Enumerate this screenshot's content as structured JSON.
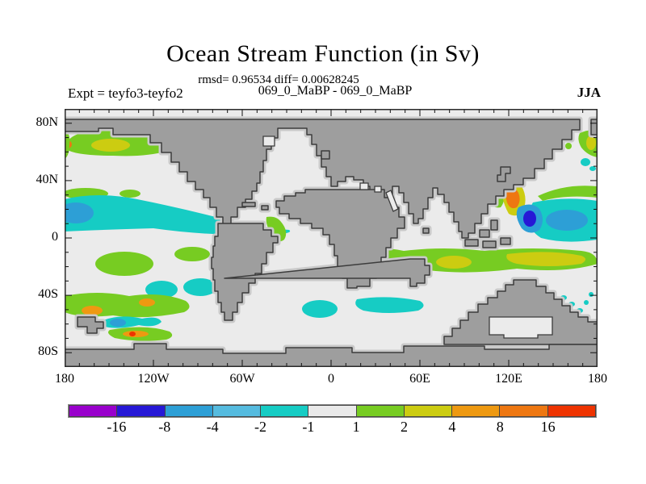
{
  "header": {
    "title": "Ocean Stream Function (in Sv)",
    "stats_line": "rmsd= 0.96534 diff= 0.00628245",
    "fields_line": "069_0_MaBP - 069_0_MaBP",
    "expt_label": "Expt = teyfo3-teyfo2",
    "season_label": "JJA"
  },
  "axes": {
    "x_ticks": [
      {
        "label": "180",
        "lon": -180
      },
      {
        "label": "120W",
        "lon": -120
      },
      {
        "label": "60W",
        "lon": -60
      },
      {
        "label": "0",
        "lon": 0
      },
      {
        "label": "60E",
        "lon": 60
      },
      {
        "label": "120E",
        "lon": 120
      },
      {
        "label": "180",
        "lon": 180
      }
    ],
    "y_ticks": [
      {
        "label": "80N",
        "lat": 80
      },
      {
        "label": "40N",
        "lat": 40
      },
      {
        "label": "0",
        "lat": 0
      },
      {
        "label": "40S",
        "lat": -40
      },
      {
        "label": "80S",
        "lat": -80
      }
    ]
  },
  "colorbar": {
    "tick_labels": [
      "-16",
      "-8",
      "-4",
      "-2",
      "-1",
      "1",
      "2",
      "4",
      "8",
      "16"
    ],
    "segment_keys": [
      "purple",
      "blue",
      "azure",
      "lightblue",
      "cyan",
      "neutral",
      "green",
      "yellow",
      "orangeyellow",
      "orange",
      "red"
    ]
  },
  "palette": {
    "ocean": "#EBEBEB",
    "land": "#9E9E9E",
    "halo": "#C9C9C9",
    "outline": "#3C3C3C",
    "purple": "#9900CC",
    "blue": "#2618D6",
    "azure": "#2D9FD6",
    "lightblue": "#55BBDF",
    "cyan": "#16CCC4",
    "neutral": "#E9E9E9",
    "green": "#77CC22",
    "yellow": "#CCCC11",
    "orangeyellow": "#EE9911",
    "orange": "#EE7711",
    "red": "#EE3300"
  },
  "chart_data": {
    "type": "heatmap",
    "title": "Ocean Stream Function (in Sv)",
    "subtitle": "069_0_MaBP - 069_0_MaBP",
    "experiment": "teyfo3-teyfo2",
    "season": "JJA",
    "units": "Sv",
    "stats": {
      "rmsd": 0.96534,
      "diff": 0.00628245
    },
    "x_axis": {
      "label": "longitude",
      "range_deg": [
        -180,
        180
      ],
      "tick_labels": [
        "180",
        "120W",
        "60W",
        "0",
        "60E",
        "120E",
        "180"
      ],
      "minor_tick_step_deg": 10
    },
    "y_axis": {
      "label": "latitude",
      "range_deg": [
        90,
        -90
      ],
      "tick_labels": [
        "80N",
        "40N",
        "0",
        "40S",
        "80S"
      ],
      "minor_tick_step_deg": 10
    },
    "colorbar_levels": [
      -16,
      -8,
      -4,
      -2,
      -1,
      1,
      2,
      4,
      8,
      16
    ],
    "legend_position": "bottom",
    "background_value_band": "-1 to 1 (near-zero difference over most of the ocean)",
    "notable_features": [
      {
        "region": "North Pacific ~55-65N",
        "value_band": "1 to 8",
        "colors": [
          "green",
          "yellow",
          "orange fleck"
        ]
      },
      {
        "region": "Equatorial Pacific 0-15N, 180-120W",
        "value_band": "-1 to -4",
        "colors": [
          "cyan band",
          "azure core at dateline"
        ]
      },
      {
        "region": "Kuroshio east of Japan ~30-40N",
        "value_band": "-8 to +8",
        "colors": [
          "orange/yellow arc",
          "blue blob",
          "broad cyan band to 180"
        ]
      },
      {
        "region": "South Indian Ocean 8-27S",
        "value_band": "1 to 4",
        "colors": [
          "green band",
          "yellow cores"
        ]
      },
      {
        "region": "South Pacific 20-45S",
        "value_band": "-2 to +16",
        "colors": [
          "green patches",
          "cyan blobs",
          "orange/red flecks"
        ]
      },
      {
        "region": "South of Africa ~45S",
        "value_band": "-1 to -2",
        "colors": [
          "cyan patches"
        ]
      }
    ]
  }
}
